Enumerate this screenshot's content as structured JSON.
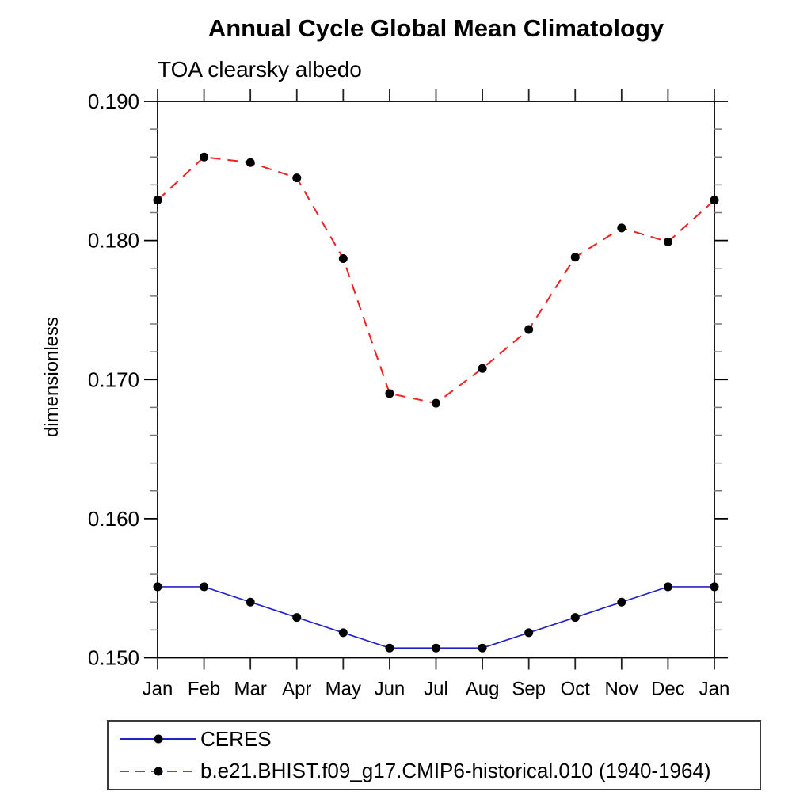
{
  "chart_data": {
    "type": "line",
    "title": "Annual Cycle Global Mean Climatology",
    "subtitle": "TOA clearsky albedo",
    "ylabel": "dimensionless",
    "xlabel": "",
    "x_categories": [
      "Jan",
      "Feb",
      "Mar",
      "Apr",
      "May",
      "Jun",
      "Jul",
      "Aug",
      "Sep",
      "Oct",
      "Nov",
      "Dec",
      "Jan"
    ],
    "ylim": [
      0.15,
      0.19
    ],
    "ytick_major": [
      0.15,
      0.16,
      0.17,
      0.18,
      0.19
    ],
    "ytick_labels": [
      "0.150",
      "0.160",
      "0.170",
      "0.180",
      "0.190"
    ],
    "ytick_minor_step": 0.002,
    "grid": "off",
    "legend_position": "bottom-left",
    "marker_color": "#000000",
    "series": [
      {
        "name": "CERES",
        "color": "#2222cc",
        "line_style": "solid",
        "marker": "filled-circle",
        "values": [
          0.1551,
          0.1551,
          0.154,
          0.1529,
          0.1518,
          0.1507,
          0.1507,
          0.1507,
          0.1518,
          0.1529,
          0.154,
          0.1551,
          0.1551
        ]
      },
      {
        "name": "b.e21.BHIST.f09_g17.CMIP6-historical.010 (1940-1964)",
        "color": "#ee2222",
        "line_style": "dashed",
        "marker": "filled-circle",
        "values": [
          0.1829,
          0.186,
          0.1856,
          0.1845,
          0.1787,
          0.169,
          0.1683,
          0.1708,
          0.1736,
          0.1788,
          0.1809,
          0.1799,
          0.1829
        ]
      }
    ]
  }
}
